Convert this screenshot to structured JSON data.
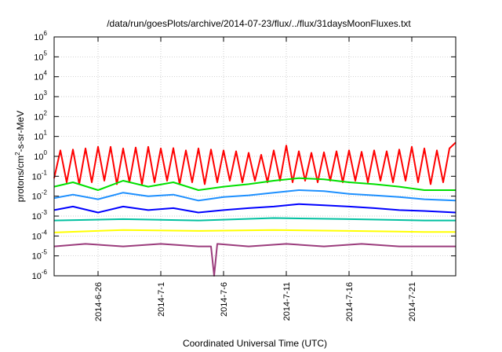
{
  "chart_data": {
    "type": "line",
    "title": "/data/run/goesPlots/archive/2014-07-23/flux/../flux/31daysMoonFluxes.txt",
    "xlabel": "Coordinated Universal Time (UTC)",
    "ylabel": "protons/cm2-s-sr-MeV",
    "y_scale": "log",
    "ylim": [
      1e-06,
      1000000.0
    ],
    "xlim": [
      "2014-06-22T12:00",
      "2014-07-24T12:00"
    ],
    "grid": true,
    "legend": "none",
    "y_ticks": [
      {
        "base": "10",
        "exp": "-6",
        "value": 1e-06
      },
      {
        "base": "10",
        "exp": "-5",
        "value": 1e-05
      },
      {
        "base": "10",
        "exp": "-4",
        "value": 0.0001
      },
      {
        "base": "10",
        "exp": "-3",
        "value": 0.001
      },
      {
        "base": "10",
        "exp": "-2",
        "value": 0.01
      },
      {
        "base": "10",
        "exp": "-1",
        "value": 0.1
      },
      {
        "base": "10",
        "exp": "0",
        "value": 1
      },
      {
        "base": "10",
        "exp": "1",
        "value": 10
      },
      {
        "base": "10",
        "exp": "2",
        "value": 100
      },
      {
        "base": "10",
        "exp": "3",
        "value": 1000
      },
      {
        "base": "10",
        "exp": "4",
        "value": 10000
      },
      {
        "base": "10",
        "exp": "5",
        "value": 100000
      },
      {
        "base": "10",
        "exp": "6",
        "value": 1000000
      }
    ],
    "x_ticks": [
      {
        "label": "2014-6-26",
        "date": "2014-06-26"
      },
      {
        "label": "2014-7-1",
        "date": "2014-07-01"
      },
      {
        "label": "2014-7-6",
        "date": "2014-07-06"
      },
      {
        "label": "2014-7-11",
        "date": "2014-07-11"
      },
      {
        "label": "2014-7-16",
        "date": "2014-07-16"
      },
      {
        "label": "2014-7-21",
        "date": "2014-07-21"
      }
    ],
    "series": [
      {
        "color": "#ff0000",
        "x": [
          "2014-06-22T12:00",
          "2014-06-23",
          "2014-06-23T12:00",
          "2014-06-24",
          "2014-06-24T12:00",
          "2014-06-25",
          "2014-06-25T12:00",
          "2014-06-26",
          "2014-06-26T12:00",
          "2014-06-27",
          "2014-06-27T12:00",
          "2014-06-28",
          "2014-06-28T12:00",
          "2014-06-29",
          "2014-06-29T12:00",
          "2014-06-30",
          "2014-06-30T12:00",
          "2014-07-01",
          "2014-07-01T12:00",
          "2014-07-02",
          "2014-07-02T12:00",
          "2014-07-03",
          "2014-07-03T12:00",
          "2014-07-04",
          "2014-07-04T12:00",
          "2014-07-05",
          "2014-07-05T12:00",
          "2014-07-06",
          "2014-07-06T12:00",
          "2014-07-07",
          "2014-07-07T12:00",
          "2014-07-08",
          "2014-07-08T12:00",
          "2014-07-09",
          "2014-07-09T12:00",
          "2014-07-10",
          "2014-07-10T12:00",
          "2014-07-11",
          "2014-07-11T12:00",
          "2014-07-12",
          "2014-07-12T12:00",
          "2014-07-13",
          "2014-07-13T12:00",
          "2014-07-14",
          "2014-07-14T12:00",
          "2014-07-15",
          "2014-07-15T12:00",
          "2014-07-16",
          "2014-07-16T12:00",
          "2014-07-17",
          "2014-07-17T12:00",
          "2014-07-18",
          "2014-07-18T12:00",
          "2014-07-19",
          "2014-07-19T12:00",
          "2014-07-20",
          "2014-07-20T12:00",
          "2014-07-21",
          "2014-07-21T12:00",
          "2014-07-22",
          "2014-07-22T12:00",
          "2014-07-23",
          "2014-07-23T12:00",
          "2014-07-24",
          "2014-07-24T12:00"
        ],
        "values": [
          0.08,
          2.0,
          0.05,
          2.2,
          0.04,
          2.5,
          0.05,
          3.0,
          0.06,
          3.0,
          0.04,
          2.5,
          0.05,
          2.8,
          0.04,
          3.0,
          0.05,
          2.5,
          0.06,
          2.6,
          0.04,
          2.0,
          0.05,
          2.5,
          0.04,
          2.2,
          0.05,
          2.0,
          0.06,
          1.8,
          0.05,
          1.5,
          0.06,
          1.2,
          0.05,
          2.0,
          0.06,
          3.5,
          0.05,
          1.8,
          0.06,
          1.5,
          0.05,
          1.6,
          0.06,
          1.8,
          0.05,
          2.0,
          0.06,
          1.7,
          0.05,
          2.0,
          0.06,
          1.8,
          0.05,
          2.2,
          0.06,
          3.0,
          0.05,
          2.5,
          0.04,
          2.0,
          0.05,
          2.5,
          5.0
        ]
      },
      {
        "color": "#00e000",
        "x": [
          "2014-06-22T12:00",
          "2014-06-24",
          "2014-06-26",
          "2014-06-28",
          "2014-06-30",
          "2014-07-02",
          "2014-07-04",
          "2014-07-06",
          "2014-07-08",
          "2014-07-10",
          "2014-07-12",
          "2014-07-14",
          "2014-07-16",
          "2014-07-18",
          "2014-07-20",
          "2014-07-22",
          "2014-07-24T12:00"
        ],
        "values": [
          0.03,
          0.05,
          0.02,
          0.06,
          0.03,
          0.05,
          0.02,
          0.03,
          0.04,
          0.06,
          0.08,
          0.07,
          0.05,
          0.04,
          0.03,
          0.02,
          0.02
        ]
      },
      {
        "color": "#1e90ff",
        "x": [
          "2014-06-22T12:00",
          "2014-06-24",
          "2014-06-26",
          "2014-06-28",
          "2014-06-30",
          "2014-07-02",
          "2014-07-04",
          "2014-07-06",
          "2014-07-08",
          "2014-07-10",
          "2014-07-12",
          "2014-07-14",
          "2014-07-16",
          "2014-07-18",
          "2014-07-20",
          "2014-07-22",
          "2014-07-24T12:00"
        ],
        "values": [
          0.008,
          0.012,
          0.007,
          0.015,
          0.01,
          0.012,
          0.006,
          0.009,
          0.011,
          0.015,
          0.02,
          0.018,
          0.013,
          0.011,
          0.009,
          0.007,
          0.006
        ]
      },
      {
        "color": "#0000ff",
        "x": [
          "2014-06-22T12:00",
          "2014-06-24",
          "2014-06-26",
          "2014-06-28",
          "2014-06-30",
          "2014-07-02",
          "2014-07-04",
          "2014-07-06",
          "2014-07-08",
          "2014-07-10",
          "2014-07-12",
          "2014-07-14",
          "2014-07-16",
          "2014-07-18",
          "2014-07-20",
          "2014-07-22",
          "2014-07-24T12:00"
        ],
        "values": [
          0.002,
          0.003,
          0.0015,
          0.003,
          0.002,
          0.0025,
          0.0015,
          0.002,
          0.0025,
          0.003,
          0.004,
          0.0035,
          0.003,
          0.0025,
          0.002,
          0.0018,
          0.0015
        ]
      },
      {
        "color": "#00c0a0",
        "x": [
          "2014-06-22T12:00",
          "2014-06-28",
          "2014-07-04",
          "2014-07-10",
          "2014-07-16",
          "2014-07-22",
          "2014-07-24T12:00"
        ],
        "values": [
          0.0006,
          0.0007,
          0.0006,
          0.0008,
          0.0007,
          0.0006,
          0.0006
        ]
      },
      {
        "color": "#ffff00",
        "x": [
          "2014-06-22T12:00",
          "2014-06-28",
          "2014-07-04",
          "2014-07-10",
          "2014-07-16",
          "2014-07-22",
          "2014-07-24T12:00"
        ],
        "values": [
          0.00015,
          0.0002,
          0.00018,
          0.0002,
          0.00018,
          0.00016,
          0.00016
        ]
      },
      {
        "color": "#9b3c7c",
        "x": [
          "2014-06-22T12:00",
          "2014-06-25",
          "2014-06-28",
          "2014-07-01",
          "2014-07-04",
          "2014-07-05",
          "2014-07-05T06:00",
          "2014-07-05T12:00",
          "2014-07-08",
          "2014-07-11",
          "2014-07-14",
          "2014-07-17",
          "2014-07-20",
          "2014-07-23",
          "2014-07-24T12:00"
        ],
        "values": [
          3e-05,
          4e-05,
          3e-05,
          4e-05,
          3e-05,
          3e-05,
          1e-06,
          4e-05,
          3e-05,
          4e-05,
          3e-05,
          4e-05,
          3e-05,
          3e-05,
          3e-05
        ]
      }
    ]
  }
}
